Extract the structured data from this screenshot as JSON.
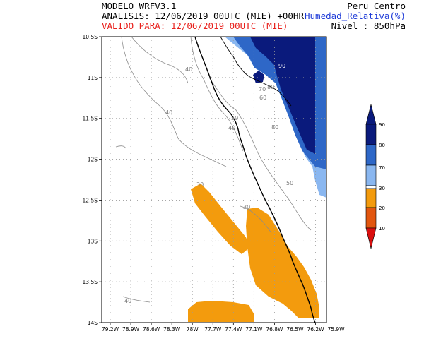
{
  "header": {
    "model": "MODELO WRFV3.1",
    "analysis": "ANALISIS: 12/06/2019 00UTC (MIE) +00HR",
    "valid": "VALIDO PARA: 12/06/2019 00UTC (MIE)",
    "region": "Peru_Centro",
    "variable": "Humedad_Relativa(%)",
    "level": "Nivel : 850hPa"
  },
  "map": {
    "lat_labels": [
      "10.5S",
      "11S",
      "11.5S",
      "12S",
      "12.5S",
      "13S",
      "13.5S",
      "14S"
    ],
    "lon_labels": [
      "79.2W",
      "78.9W",
      "78.6W",
      "78.3W",
      "78W",
      "77.7W",
      "77.4W",
      "77.1W",
      "76.8W",
      "76.5W",
      "76.2W",
      "75.9W"
    ],
    "contour_labels": [
      "30",
      "40",
      "50",
      "60",
      "70",
      "80",
      "90"
    ]
  },
  "colorbar": {
    "ticks": [
      "90",
      "80",
      "70",
      "30",
      "20",
      "10"
    ],
    "colors": {
      "c90": "#0a1a7c",
      "c80": "#2e67c7",
      "c70": "#8ab7f0",
      "c30": "#f39b0d",
      "c20": "#e2560f",
      "c10": "#d90f0f"
    }
  }
}
